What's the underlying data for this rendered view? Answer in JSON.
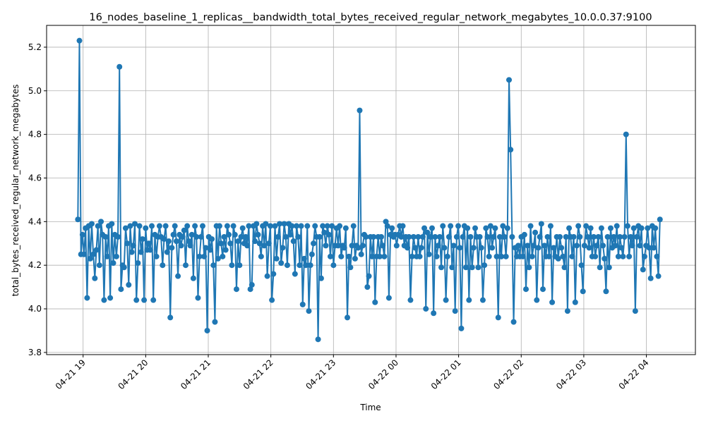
{
  "chart_data": {
    "type": "line",
    "title": "16_nodes_baseline_1_replicas__bandwidth_total_bytes_received_regular_network_megabytes_10.0.0.37:9100",
    "xlabel": "Time",
    "ylabel": "total_bytes_received_regular_network_megabytes",
    "xlim": [
      "2024-04-21 18:25",
      "2024-04-22 04:47"
    ],
    "ylim": [
      3.79,
      5.3
    ],
    "x_ticks": [
      "04-21 19",
      "04-21 20",
      "04-21 21",
      "04-21 22",
      "04-21 23",
      "04-22 00",
      "04-22 01",
      "04-22 02",
      "04-22 03",
      "04-22 04"
    ],
    "y_ticks": [
      "3.8",
      "4.0",
      "4.2",
      "4.4",
      "4.6",
      "4.8",
      "5.0",
      "5.2"
    ],
    "grid": true,
    "series": [
      {
        "color": "#1f77b4",
        "x_start": "2024-04-21 18:55",
        "x_end": "2024-04-22 04:13",
        "y": [
          4.41,
          5.23,
          4.25,
          4.34,
          4.25,
          4.37,
          4.05,
          4.38,
          4.23,
          4.39,
          4.25,
          4.14,
          4.27,
          4.38,
          4.2,
          4.4,
          4.34,
          4.04,
          4.33,
          4.24,
          4.38,
          4.05,
          4.39,
          4.21,
          4.34,
          4.24,
          4.33,
          5.11,
          4.09,
          4.2,
          4.19,
          4.37,
          4.3,
          4.11,
          4.38,
          4.26,
          4.29,
          4.39,
          4.04,
          4.21,
          4.38,
          4.26,
          4.32,
          4.04,
          4.37,
          4.27,
          4.3,
          4.27,
          4.38,
          4.04,
          4.34,
          4.24,
          4.33,
          4.38,
          4.33,
          4.2,
          4.32,
          4.38,
          4.26,
          4.31,
          3.96,
          4.28,
          4.34,
          4.38,
          4.31,
          4.15,
          4.34,
          4.29,
          4.33,
          4.36,
          4.2,
          4.38,
          4.31,
          4.29,
          4.34,
          4.14,
          4.38,
          4.33,
          4.05,
          4.24,
          4.33,
          4.38,
          4.24,
          4.28,
          3.9,
          4.33,
          4.27,
          4.32,
          4.2,
          3.94,
          4.38,
          4.23,
          4.38,
          4.3,
          4.24,
          4.33,
          4.27,
          4.38,
          4.34,
          4.3,
          4.2,
          4.38,
          4.34,
          4.09,
          4.31,
          4.2,
          4.33,
          4.37,
          4.3,
          4.33,
          4.29,
          4.38,
          4.09,
          4.11,
          4.38,
          4.31,
          4.39,
          4.34,
          4.3,
          4.24,
          4.38,
          4.29,
          4.39,
          4.15,
          4.3,
          4.38,
          4.04,
          4.16,
          4.38,
          4.23,
          4.33,
          4.39,
          4.21,
          4.28,
          4.39,
          4.33,
          4.2,
          4.39,
          4.34,
          4.38,
          4.31,
          4.16,
          4.38,
          4.33,
          4.2,
          4.38,
          4.02,
          4.23,
          4.2,
          4.38,
          3.99,
          4.2,
          4.25,
          4.3,
          4.38,
          4.33,
          3.86,
          4.33,
          4.14,
          4.38,
          4.35,
          4.29,
          4.38,
          4.34,
          4.24,
          4.38,
          4.2,
          4.29,
          4.37,
          4.29,
          4.38,
          4.24,
          4.29,
          4.28,
          4.37,
          3.96,
          4.24,
          4.19,
          4.29,
          4.38,
          4.23,
          4.29,
          4.28,
          4.91,
          4.25,
          4.29,
          4.34,
          4.33,
          4.1,
          4.15,
          4.33,
          4.24,
          4.33,
          4.03,
          4.24,
          4.33,
          4.24,
          4.33,
          4.29,
          4.24,
          4.4,
          4.38,
          4.05,
          4.34,
          4.37,
          4.33,
          4.34,
          4.29,
          4.34,
          4.38,
          4.33,
          4.38,
          4.29,
          4.33,
          4.28,
          4.33,
          4.04,
          4.24,
          4.33,
          4.28,
          4.24,
          4.33,
          4.24,
          4.28,
          4.33,
          4.37,
          4.0,
          4.35,
          4.25,
          4.33,
          4.37,
          3.98,
          4.33,
          4.24,
          4.29,
          4.33,
          4.19,
          4.38,
          4.28,
          4.04,
          4.24,
          4.33,
          4.38,
          4.19,
          4.29,
          3.99,
          4.33,
          4.38,
          4.28,
          3.91,
          4.33,
          4.38,
          4.19,
          4.37,
          4.04,
          4.33,
          4.19,
          4.28,
          4.37,
          4.33,
          4.19,
          4.33,
          4.28,
          4.04,
          4.2,
          4.37,
          4.33,
          4.24,
          4.38,
          4.28,
          4.33,
          4.37,
          4.24,
          3.96,
          4.33,
          4.24,
          4.38,
          4.33,
          4.24,
          4.37,
          5.05,
          4.73,
          4.33,
          3.94,
          4.28,
          4.24,
          4.29,
          4.24,
          4.33,
          4.24,
          4.34,
          4.09,
          4.29,
          4.19,
          4.38,
          4.24,
          4.29,
          4.35,
          4.04,
          4.28,
          4.33,
          4.39,
          4.09,
          4.29,
          4.24,
          4.33,
          4.24,
          4.38,
          4.03,
          4.28,
          4.24,
          4.33,
          4.23,
          4.33,
          4.28,
          4.24,
          4.19,
          4.33,
          3.99,
          4.37,
          4.33,
          4.24,
          4.33,
          4.03,
          4.29,
          4.38,
          4.33,
          4.2,
          4.08,
          4.29,
          4.38,
          4.33,
          4.28,
          4.37,
          4.24,
          4.33,
          4.24,
          4.29,
          4.33,
          4.19,
          4.37,
          4.29,
          4.23,
          4.08,
          4.33,
          4.19,
          4.37,
          4.28,
          4.33,
          4.29,
          4.38,
          4.24,
          4.33,
          4.28,
          4.24,
          4.33,
          4.8,
          4.38,
          4.24,
          4.33,
          4.29,
          4.37,
          3.99,
          4.33,
          4.38,
          4.29,
          4.37,
          4.18,
          4.24,
          4.29,
          4.37,
          4.28,
          4.14,
          4.38,
          4.28,
          4.37,
          4.24,
          4.15,
          4.41
        ]
      }
    ]
  }
}
